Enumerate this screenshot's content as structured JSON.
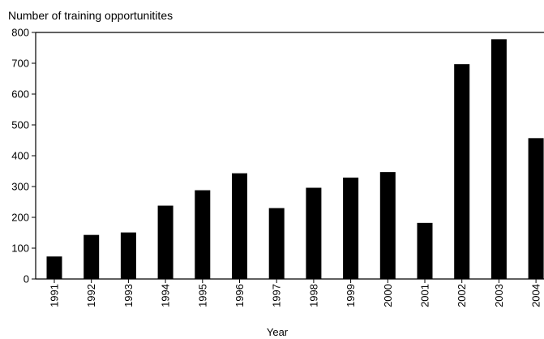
{
  "chart_data": {
    "type": "bar",
    "title": "",
    "ylabel": "Number of training opportunitites",
    "xlabel": "Year",
    "ylim": [
      0,
      800
    ],
    "yticks": [
      0,
      100,
      200,
      300,
      400,
      500,
      600,
      700,
      800
    ],
    "grid": false,
    "bar_color": "#000000",
    "categories": [
      "1991",
      "1992",
      "1993",
      "1994",
      "1995",
      "1996",
      "1997",
      "1998",
      "1999",
      "2000",
      "2001",
      "2002",
      "2003",
      "2004"
    ],
    "values": [
      73,
      143,
      151,
      238,
      288,
      343,
      230,
      296,
      329,
      347,
      182,
      697,
      778,
      457
    ]
  }
}
